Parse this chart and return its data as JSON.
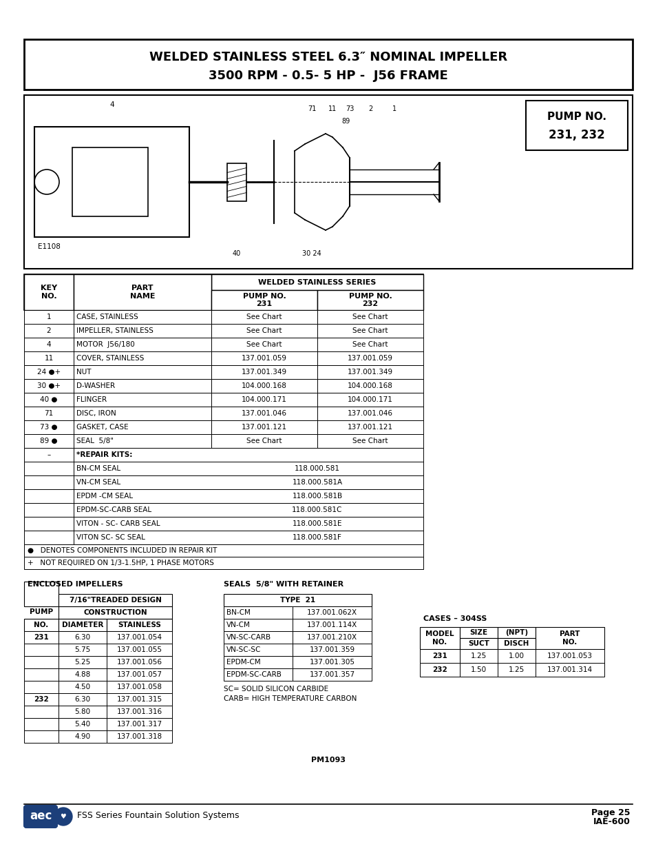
{
  "title_line1": "WELDED STAINLESS STEEL 6.3″ NOMINAL IMPELLER",
  "title_line2": "3500 RPM - 0.5- 5 HP -  J56 FRAME",
  "pump_no_label": "PUMP NO.",
  "pump_no_value": "231, 232",
  "main_table_rows": [
    [
      "1",
      "CASE, STAINLESS",
      "See Chart",
      "See Chart"
    ],
    [
      "2",
      "IMPELLER, STAINLESS",
      "See Chart",
      "See Chart"
    ],
    [
      "4",
      "MOTOR  J56/180",
      "See Chart",
      "See Chart"
    ],
    [
      "11",
      "COVER, STAINLESS",
      "137.001.059",
      "137.001.059"
    ],
    [
      "24 ●+",
      "NUT",
      "137.001.349",
      "137.001.349"
    ],
    [
      "30 ●+",
      "D-WASHER",
      "104.000.168",
      "104.000.168"
    ],
    [
      "40 ●",
      "FLINGER",
      "104.000.171",
      "104.000.171"
    ],
    [
      "71",
      "DISC, IRON",
      "137.001.046",
      "137.001.046"
    ],
    [
      "73 ●",
      "GASKET, CASE",
      "137.001.121",
      "137.001.121"
    ],
    [
      "89 ●",
      "SEAL  5/8\"",
      "See Chart",
      "See Chart"
    ]
  ],
  "repair_kits": [
    [
      "–",
      "*REPAIR KITS:",
      ""
    ],
    [
      "",
      "BN-CM SEAL",
      "118.000.581"
    ],
    [
      "",
      "VN-CM SEAL",
      "118.000.581A"
    ],
    [
      "",
      "EPDM -CM SEAL",
      "118.000.581B"
    ],
    [
      "",
      "EPDM-SC-CARB SEAL",
      "118.000.581C"
    ],
    [
      "",
      "VITON - SC- CARB SEAL",
      "118.000.581E"
    ],
    [
      "",
      "VITON SC- SC SEAL",
      "118.000.581F"
    ]
  ],
  "footnote1": "●   DENOTES COMPONENTS INCLUDED IN REPAIR KIT",
  "footnote2": "+   NOT REQUIRED ON 1/3-1.5HP, 1 PHASE MOTORS",
  "enclosed_title": "ENCLOSED IMPELLERS",
  "enclosed_subtitle": "7/16\"TREADED DESIGN",
  "enclosed_data": [
    [
      "231",
      "6.30",
      "137.001.054"
    ],
    [
      "",
      "5.75",
      "137.001.055"
    ],
    [
      "",
      "5.25",
      "137.001.056"
    ],
    [
      "",
      "4.88",
      "137.001.057"
    ],
    [
      "",
      "4.50",
      "137.001.058"
    ],
    [
      "232",
      "6.30",
      "137.001.315"
    ],
    [
      "",
      "5.80",
      "137.001.316"
    ],
    [
      "",
      "5.40",
      "137.001.317"
    ],
    [
      "",
      "4.90",
      "137.001.318"
    ]
  ],
  "seals_title": "SEALS  5/8\" WITH RETAINER",
  "seals_type": "TYPE  21",
  "seals_data": [
    [
      "BN-CM",
      "137.001.062X"
    ],
    [
      "VN-CM",
      "137.001.114X"
    ],
    [
      "VN-SC-CARB",
      "137.001.210X"
    ],
    [
      "VN-SC-SC",
      "137.001.359"
    ],
    [
      "EPDM-CM",
      "137.001.305"
    ],
    [
      "EPDM-SC-CARB",
      "137.001.357"
    ]
  ],
  "sc_note": "SC= SOLID SILICON CARBIDE",
  "carb_note": "CARB= HIGH TEMPERATURE CARBON",
  "cases_title": "CASES – 304SS",
  "cases_col1_hdr": "MODEL\nNO.",
  "cases_col2_hdr": "SIZE\nSUCT",
  "cases_col3_hdr": "(NPT)\nDISCH",
  "cases_col4_hdr": "PART\nNO.",
  "cases_data": [
    [
      "231",
      "1.25",
      "1.00",
      "137.001.053"
    ],
    [
      "232",
      "1.50",
      "1.25",
      "137.001.314"
    ]
  ],
  "pm_label": "PM1093",
  "footer_text": "FSS Series Fountain Solution Systems",
  "page_text": "Page 25",
  "iae_text": "IAE-600"
}
